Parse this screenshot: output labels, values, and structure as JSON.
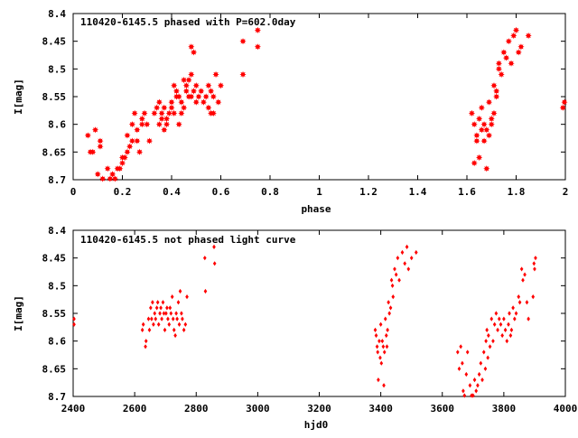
{
  "chart_data": [
    {
      "type": "scatter",
      "title": "110420-6145.5 phased with P=602.0day",
      "xlabel": "phase",
      "ylabel": "I[mag]",
      "xlim": [
        0,
        2
      ],
      "ylim": [
        8.7,
        8.4
      ],
      "y_inverted": true,
      "grid": false,
      "color": "#ff0000",
      "marker": "star",
      "x_ticks": [
        "0",
        "0.2",
        "0.4",
        "0.6",
        "0.8",
        "1",
        "1.2",
        "1.4",
        "1.6",
        "1.8",
        "2"
      ],
      "y_ticks": [
        "8.4",
        "8.45",
        "8.5",
        "8.55",
        "8.6",
        "8.65",
        "8.7"
      ],
      "points": [
        [
          0.06,
          8.62
        ],
        [
          0.07,
          8.65
        ],
        [
          0.08,
          8.65
        ],
        [
          0.09,
          8.61
        ],
        [
          0.1,
          8.69
        ],
        [
          0.11,
          8.63
        ],
        [
          0.11,
          8.64
        ],
        [
          0.12,
          8.7
        ],
        [
          0.14,
          8.68
        ],
        [
          0.15,
          8.7
        ],
        [
          0.16,
          8.69
        ],
        [
          0.17,
          8.7
        ],
        [
          0.18,
          8.68
        ],
        [
          0.19,
          8.68
        ],
        [
          0.2,
          8.67
        ],
        [
          0.2,
          8.66
        ],
        [
          0.21,
          8.66
        ],
        [
          0.22,
          8.65
        ],
        [
          0.22,
          8.62
        ],
        [
          0.23,
          8.64
        ],
        [
          0.24,
          8.63
        ],
        [
          0.24,
          8.6
        ],
        [
          0.25,
          8.58
        ],
        [
          0.26,
          8.61
        ],
        [
          0.26,
          8.63
        ],
        [
          0.27,
          8.65
        ],
        [
          0.28,
          8.6
        ],
        [
          0.28,
          8.59
        ],
        [
          0.29,
          8.58
        ],
        [
          0.3,
          8.6
        ],
        [
          0.31,
          8.63
        ],
        [
          0.33,
          8.58
        ],
        [
          0.34,
          8.57
        ],
        [
          0.35,
          8.6
        ],
        [
          0.35,
          8.56
        ],
        [
          0.36,
          8.59
        ],
        [
          0.36,
          8.58
        ],
        [
          0.37,
          8.61
        ],
        [
          0.37,
          8.57
        ],
        [
          0.38,
          8.59
        ],
        [
          0.38,
          8.6
        ],
        [
          0.39,
          8.58
        ],
        [
          0.4,
          8.56
        ],
        [
          0.4,
          8.57
        ],
        [
          0.41,
          8.53
        ],
        [
          0.41,
          8.58
        ],
        [
          0.42,
          8.54
        ],
        [
          0.42,
          8.55
        ],
        [
          0.43,
          8.55
        ],
        [
          0.43,
          8.6
        ],
        [
          0.44,
          8.56
        ],
        [
          0.44,
          8.58
        ],
        [
          0.45,
          8.52
        ],
        [
          0.45,
          8.57
        ],
        [
          0.46,
          8.54
        ],
        [
          0.46,
          8.53
        ],
        [
          0.47,
          8.55
        ],
        [
          0.47,
          8.52
        ],
        [
          0.48,
          8.46
        ],
        [
          0.48,
          8.51
        ],
        [
          0.48,
          8.55
        ],
        [
          0.49,
          8.47
        ],
        [
          0.49,
          8.54
        ],
        [
          0.5,
          8.56
        ],
        [
          0.5,
          8.53
        ],
        [
          0.51,
          8.55
        ],
        [
          0.52,
          8.54
        ],
        [
          0.53,
          8.56
        ],
        [
          0.54,
          8.55
        ],
        [
          0.55,
          8.53
        ],
        [
          0.55,
          8.57
        ],
        [
          0.56,
          8.58
        ],
        [
          0.56,
          8.54
        ],
        [
          0.57,
          8.55
        ],
        [
          0.57,
          8.58
        ],
        [
          0.58,
          8.51
        ],
        [
          0.59,
          8.56
        ],
        [
          0.6,
          8.53
        ],
        [
          0.69,
          8.45
        ],
        [
          0.69,
          8.51
        ],
        [
          0.75,
          8.43
        ],
        [
          0.75,
          8.46
        ],
        [
          1.62,
          8.58
        ],
        [
          1.63,
          8.6
        ],
        [
          1.63,
          8.67
        ],
        [
          1.64,
          8.62
        ],
        [
          1.64,
          8.63
        ],
        [
          1.65,
          8.59
        ],
        [
          1.65,
          8.66
        ],
        [
          1.66,
          8.61
        ],
        [
          1.66,
          8.57
        ],
        [
          1.67,
          8.63
        ],
        [
          1.67,
          8.6
        ],
        [
          1.68,
          8.68
        ],
        [
          1.68,
          8.61
        ],
        [
          1.69,
          8.62
        ],
        [
          1.69,
          8.56
        ],
        [
          1.7,
          8.59
        ],
        [
          1.7,
          8.6
        ],
        [
          1.71,
          8.58
        ],
        [
          1.71,
          8.53
        ],
        [
          1.72,
          8.54
        ],
        [
          1.72,
          8.55
        ],
        [
          1.73,
          8.49
        ],
        [
          1.73,
          8.5
        ],
        [
          1.74,
          8.51
        ],
        [
          1.75,
          8.47
        ],
        [
          1.76,
          8.48
        ],
        [
          1.77,
          8.45
        ],
        [
          1.78,
          8.49
        ],
        [
          1.79,
          8.44
        ],
        [
          1.8,
          8.43
        ],
        [
          1.81,
          8.47
        ],
        [
          1.82,
          8.46
        ],
        [
          1.85,
          8.44
        ],
        [
          1.99,
          8.57
        ],
        [
          2.0,
          8.56
        ]
      ]
    },
    {
      "type": "scatter",
      "title": "110420-6145.5 not phased light curve",
      "xlabel": "hjd0",
      "ylabel": "I[mag]",
      "xlim": [
        2400,
        4000
      ],
      "ylim": [
        8.7,
        8.4
      ],
      "y_inverted": true,
      "grid": false,
      "color": "#ff0000",
      "marker": "diamond",
      "x_ticks": [
        "2400",
        "2600",
        "2800",
        "3000",
        "3200",
        "3400",
        "3600",
        "3800",
        "4000"
      ],
      "y_ticks": [
        "8.4",
        "8.45",
        "8.5",
        "8.55",
        "8.6",
        "8.65",
        "8.7"
      ],
      "points": [
        [
          2402,
          8.56
        ],
        [
          2403,
          8.57
        ],
        [
          2625,
          8.58
        ],
        [
          2628,
          8.57
        ],
        [
          2635,
          8.61
        ],
        [
          2637,
          8.6
        ],
        [
          2645,
          8.56
        ],
        [
          2648,
          8.58
        ],
        [
          2652,
          8.54
        ],
        [
          2655,
          8.56
        ],
        [
          2658,
          8.53
        ],
        [
          2661,
          8.57
        ],
        [
          2665,
          8.55
        ],
        [
          2668,
          8.56
        ],
        [
          2672,
          8.54
        ],
        [
          2675,
          8.53
        ],
        [
          2678,
          8.57
        ],
        [
          2682,
          8.55
        ],
        [
          2685,
          8.54
        ],
        [
          2688,
          8.56
        ],
        [
          2692,
          8.53
        ],
        [
          2695,
          8.55
        ],
        [
          2698,
          8.58
        ],
        [
          2702,
          8.55
        ],
        [
          2705,
          8.54
        ],
        [
          2708,
          8.56
        ],
        [
          2712,
          8.57
        ],
        [
          2715,
          8.54
        ],
        [
          2718,
          8.55
        ],
        [
          2722,
          8.52
        ],
        [
          2725,
          8.56
        ],
        [
          2728,
          8.58
        ],
        [
          2732,
          8.59
        ],
        [
          2735,
          8.55
        ],
        [
          2738,
          8.56
        ],
        [
          2742,
          8.53
        ],
        [
          2745,
          8.57
        ],
        [
          2748,
          8.51
        ],
        [
          2752,
          8.55
        ],
        [
          2755,
          8.56
        ],
        [
          2760,
          8.58
        ],
        [
          2765,
          8.57
        ],
        [
          2770,
          8.52
        ],
        [
          2828,
          8.45
        ],
        [
          2830,
          8.51
        ],
        [
          2858,
          8.43
        ],
        [
          2860,
          8.46
        ],
        [
          3382,
          8.58
        ],
        [
          3385,
          8.59
        ],
        [
          3388,
          8.61
        ],
        [
          3390,
          8.62
        ],
        [
          3392,
          8.67
        ],
        [
          3395,
          8.6
        ],
        [
          3398,
          8.63
        ],
        [
          3400,
          8.57
        ],
        [
          3402,
          8.64
        ],
        [
          3405,
          8.6
        ],
        [
          3408,
          8.61
        ],
        [
          3410,
          8.68
        ],
        [
          3412,
          8.62
        ],
        [
          3415,
          8.56
        ],
        [
          3418,
          8.59
        ],
        [
          3420,
          8.61
        ],
        [
          3422,
          8.58
        ],
        [
          3425,
          8.53
        ],
        [
          3428,
          8.55
        ],
        [
          3432,
          8.54
        ],
        [
          3435,
          8.49
        ],
        [
          3438,
          8.5
        ],
        [
          3440,
          8.52
        ],
        [
          3445,
          8.47
        ],
        [
          3450,
          8.48
        ],
        [
          3455,
          8.45
        ],
        [
          3460,
          8.49
        ],
        [
          3470,
          8.44
        ],
        [
          3478,
          8.46
        ],
        [
          3485,
          8.43
        ],
        [
          3490,
          8.47
        ],
        [
          3500,
          8.45
        ],
        [
          3515,
          8.44
        ],
        [
          3650,
          8.62
        ],
        [
          3655,
          8.65
        ],
        [
          3660,
          8.61
        ],
        [
          3665,
          8.64
        ],
        [
          3668,
          8.69
        ],
        [
          3672,
          8.7
        ],
        [
          3678,
          8.66
        ],
        [
          3682,
          8.62
        ],
        [
          3690,
          8.68
        ],
        [
          3695,
          8.7
        ],
        [
          3700,
          8.7
        ],
        [
          3705,
          8.67
        ],
        [
          3710,
          8.69
        ],
        [
          3715,
          8.68
        ],
        [
          3720,
          8.66
        ],
        [
          3725,
          8.64
        ],
        [
          3730,
          8.67
        ],
        [
          3735,
          8.62
        ],
        [
          3740,
          8.65
        ],
        [
          3742,
          8.6
        ],
        [
          3745,
          8.58
        ],
        [
          3748,
          8.63
        ],
        [
          3750,
          8.59
        ],
        [
          3755,
          8.61
        ],
        [
          3760,
          8.56
        ],
        [
          3765,
          8.6
        ],
        [
          3770,
          8.57
        ],
        [
          3775,
          8.55
        ],
        [
          3780,
          8.58
        ],
        [
          3785,
          8.56
        ],
        [
          3790,
          8.57
        ],
        [
          3795,
          8.59
        ],
        [
          3800,
          8.56
        ],
        [
          3805,
          8.58
        ],
        [
          3810,
          8.6
        ],
        [
          3815,
          8.57
        ],
        [
          3818,
          8.55
        ],
        [
          3822,
          8.59
        ],
        [
          3825,
          8.58
        ],
        [
          3830,
          8.54
        ],
        [
          3835,
          8.56
        ],
        [
          3840,
          8.55
        ],
        [
          3848,
          8.52
        ],
        [
          3852,
          8.53
        ],
        [
          3858,
          8.47
        ],
        [
          3862,
          8.49
        ],
        [
          3868,
          8.48
        ],
        [
          3875,
          8.53
        ],
        [
          3880,
          8.56
        ],
        [
          3895,
          8.52
        ],
        [
          3898,
          8.46
        ],
        [
          3900,
          8.47
        ],
        [
          3903,
          8.45
        ]
      ]
    }
  ]
}
